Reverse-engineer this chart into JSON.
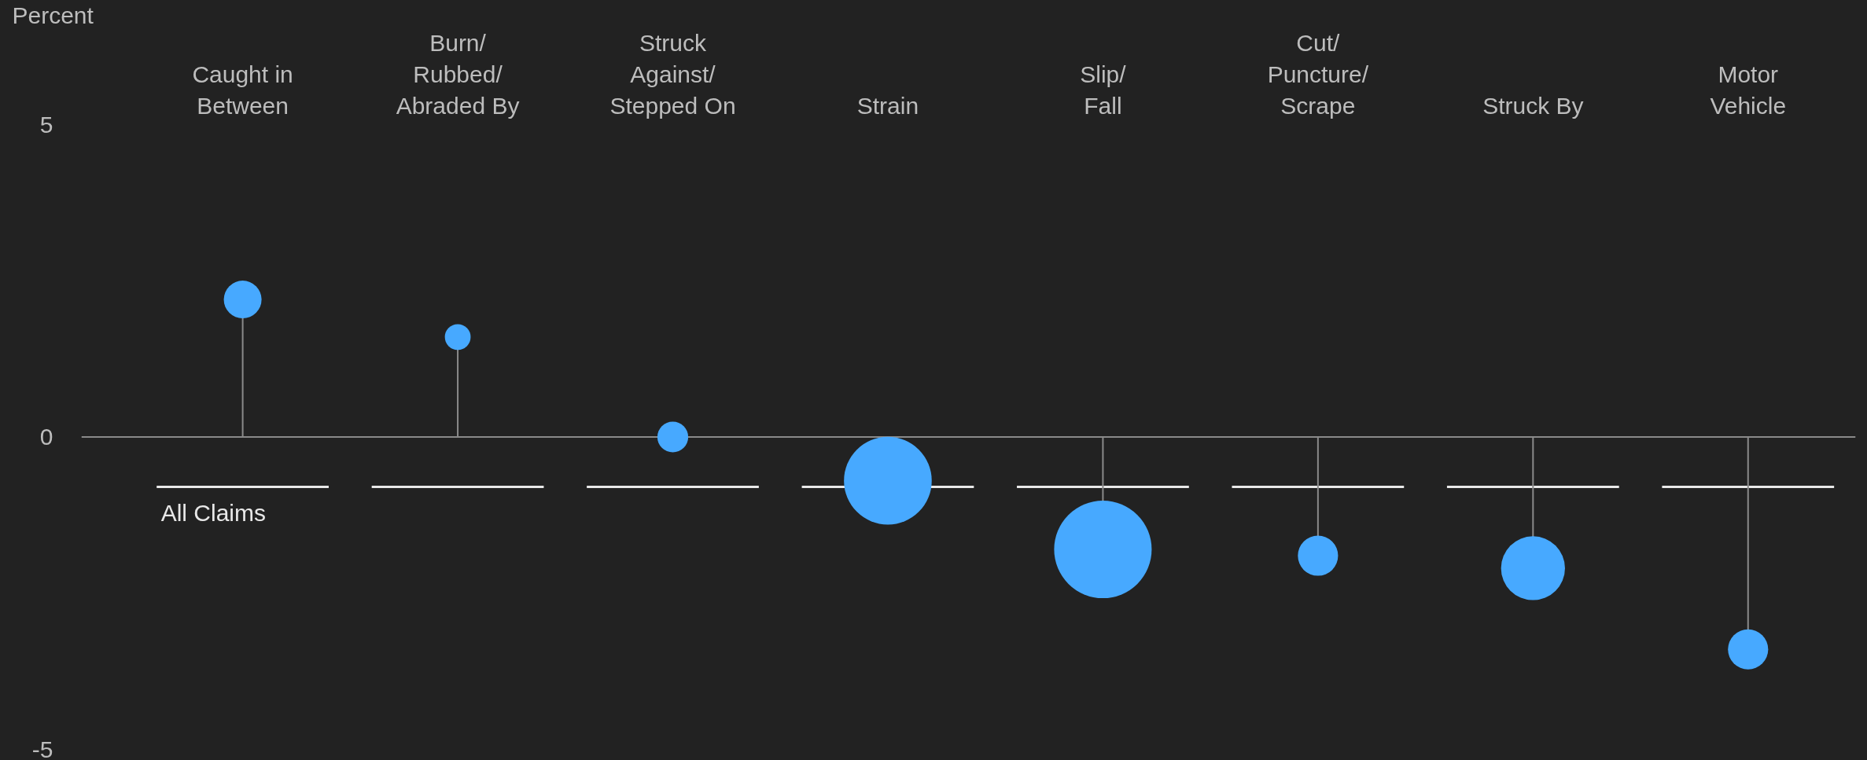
{
  "chart_data": {
    "type": "lollipop",
    "ylabel": "Percent",
    "categories": [
      "Caught in\nBetween",
      "Burn/\nRubbed/\nAbraded By",
      "Struck\nAgainst/\nStepped On",
      "Strain",
      "Slip/\nFall",
      "Cut/\nPuncture/\nScrape",
      "Struck By",
      "Motor\nVehicle"
    ],
    "series": [
      {
        "color": "#47a9ff",
        "values": [
          2.2,
          1.6,
          0.0,
          -0.7,
          -1.8,
          -1.9,
          -2.1,
          -3.4
        ],
        "sizes": [
          0.15,
          0.07,
          0.1,
          0.81,
          1,
          0.17,
          0.43,
          0.17
        ]
      }
    ],
    "ylim": [
      -5,
      5
    ],
    "yticks": [
      -5,
      0,
      5
    ],
    "ref_lines": [
      {
        "axis": "y",
        "value": -0.8,
        "label": "All Claims",
        "color": "#e8e8e8"
      }
    ],
    "marker": "circle"
  }
}
